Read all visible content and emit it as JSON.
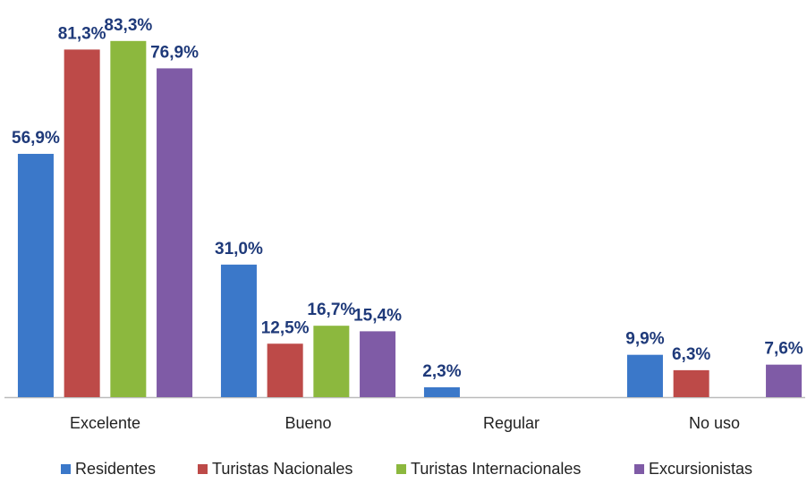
{
  "chart_data": {
    "type": "bar",
    "categories": [
      "Excelente",
      "Bueno",
      "Regular",
      "No uso"
    ],
    "series": [
      {
        "name": "Residentes",
        "color": "#3b78c9",
        "values": [
          56.9,
          31.0,
          2.3,
          9.9
        ],
        "value_labels": [
          "56,9%",
          "31,0%",
          "2,3%",
          "9,9%"
        ]
      },
      {
        "name": "Turistas Nacionales",
        "color": "#bd4a48",
        "values": [
          81.3,
          12.5,
          null,
          6.3
        ],
        "value_labels": [
          "81,3%",
          "12,5%",
          null,
          "6,3%"
        ]
      },
      {
        "name": "Turistas Internacionales",
        "color": "#8cb83e",
        "values": [
          83.3,
          16.7,
          null,
          null
        ],
        "value_labels": [
          "83,3%",
          "16,7%",
          null,
          null
        ]
      },
      {
        "name": "Excursionistas",
        "color": "#7f5ba6",
        "values": [
          76.9,
          15.4,
          null,
          7.6
        ],
        "value_labels": [
          "76,9%",
          "15,4%",
          null,
          "7,6%"
        ]
      }
    ]
  }
}
